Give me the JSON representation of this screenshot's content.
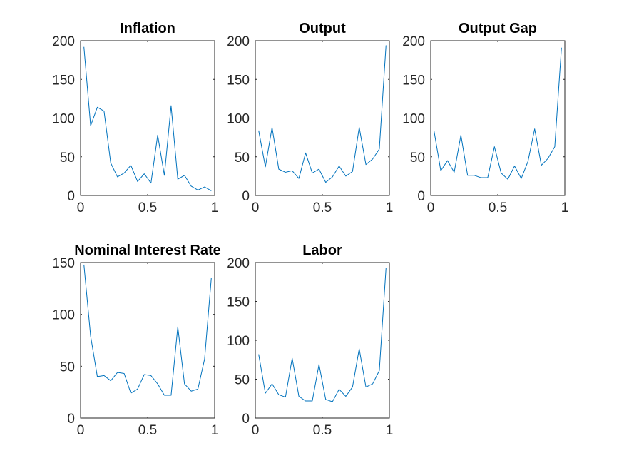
{
  "line_color": "#0072bd",
  "chart_data": [
    {
      "type": "line",
      "title": "Inflation",
      "xlim": [
        0,
        1
      ],
      "ylim": [
        0,
        200
      ],
      "xticks": [
        0,
        0.5,
        1
      ],
      "xtick_labels": [
        "0",
        "0.5",
        "1"
      ],
      "yticks": [
        0,
        50,
        100,
        150,
        200
      ],
      "ytick_labels": [
        "0",
        "50",
        "100",
        "150",
        "200"
      ],
      "x": [
        0.025,
        0.075,
        0.125,
        0.175,
        0.225,
        0.275,
        0.325,
        0.375,
        0.425,
        0.475,
        0.525,
        0.575,
        0.625,
        0.675,
        0.725,
        0.775,
        0.825,
        0.875,
        0.925,
        0.975
      ],
      "series": [
        {
          "values": [
            192,
            90,
            114,
            109,
            42,
            24,
            29,
            39,
            18,
            28,
            16,
            78,
            26,
            116,
            21,
            26,
            12,
            7,
            11,
            6
          ]
        }
      ]
    },
    {
      "type": "line",
      "title": "Output",
      "xlim": [
        0,
        1
      ],
      "ylim": [
        0,
        200
      ],
      "xticks": [
        0,
        0.5,
        1
      ],
      "xtick_labels": [
        "0",
        "0.5",
        "1"
      ],
      "yticks": [
        0,
        50,
        100,
        150,
        200
      ],
      "ytick_labels": [
        "0",
        "50",
        "100",
        "150",
        "200"
      ],
      "x": [
        0.025,
        0.075,
        0.125,
        0.175,
        0.225,
        0.275,
        0.325,
        0.375,
        0.425,
        0.475,
        0.525,
        0.575,
        0.625,
        0.675,
        0.725,
        0.775,
        0.825,
        0.875,
        0.925,
        0.975
      ],
      "series": [
        {
          "values": [
            84,
            37,
            88,
            34,
            30,
            32,
            22,
            55,
            29,
            34,
            17,
            24,
            38,
            25,
            31,
            88,
            40,
            47,
            60,
            194
          ]
        }
      ]
    },
    {
      "type": "line",
      "title": "Output Gap",
      "xlim": [
        0,
        1
      ],
      "ylim": [
        0,
        200
      ],
      "xticks": [
        0,
        0.5,
        1
      ],
      "xtick_labels": [
        "0",
        "0.5",
        "1"
      ],
      "yticks": [
        0,
        50,
        100,
        150,
        200
      ],
      "ytick_labels": [
        "0",
        "50",
        "100",
        "150",
        "200"
      ],
      "x": [
        0.025,
        0.075,
        0.125,
        0.175,
        0.225,
        0.275,
        0.325,
        0.375,
        0.425,
        0.475,
        0.525,
        0.575,
        0.625,
        0.675,
        0.725,
        0.775,
        0.825,
        0.875,
        0.925,
        0.975
      ],
      "series": [
        {
          "values": [
            83,
            32,
            45,
            30,
            78,
            26,
            26,
            23,
            23,
            63,
            29,
            21,
            38,
            22,
            44,
            86,
            39,
            48,
            63,
            191
          ]
        }
      ]
    },
    {
      "type": "line",
      "title": "Nominal Interest Rate",
      "xlim": [
        0,
        1
      ],
      "ylim": [
        0,
        150
      ],
      "xticks": [
        0,
        0.5,
        1
      ],
      "xtick_labels": [
        "0",
        "0.5",
        "1"
      ],
      "yticks": [
        0,
        50,
        100,
        150
      ],
      "ytick_labels": [
        "0",
        "50",
        "100",
        "150"
      ],
      "x": [
        0.025,
        0.075,
        0.125,
        0.175,
        0.225,
        0.275,
        0.325,
        0.375,
        0.425,
        0.475,
        0.525,
        0.575,
        0.625,
        0.675,
        0.725,
        0.775,
        0.825,
        0.875,
        0.925,
        0.975
      ],
      "series": [
        {
          "values": [
            148,
            79,
            40,
            41,
            36,
            44,
            43,
            24,
            28,
            42,
            41,
            33,
            22,
            22,
            88,
            33,
            26,
            28,
            57,
            135
          ]
        }
      ]
    },
    {
      "type": "line",
      "title": "Labor",
      "xlim": [
        0,
        1
      ],
      "ylim": [
        0,
        200
      ],
      "xticks": [
        0,
        0.5,
        1
      ],
      "xtick_labels": [
        "0",
        "0.5",
        "1"
      ],
      "yticks": [
        0,
        50,
        100,
        150,
        200
      ],
      "ytick_labels": [
        "0",
        "50",
        "100",
        "150",
        "200"
      ],
      "x": [
        0.025,
        0.075,
        0.125,
        0.175,
        0.225,
        0.275,
        0.325,
        0.375,
        0.425,
        0.475,
        0.525,
        0.575,
        0.625,
        0.675,
        0.725,
        0.775,
        0.825,
        0.875,
        0.925,
        0.975
      ],
      "series": [
        {
          "values": [
            82,
            32,
            44,
            30,
            27,
            77,
            28,
            22,
            22,
            69,
            24,
            21,
            37,
            28,
            40,
            89,
            40,
            44,
            61,
            193
          ]
        }
      ]
    }
  ]
}
